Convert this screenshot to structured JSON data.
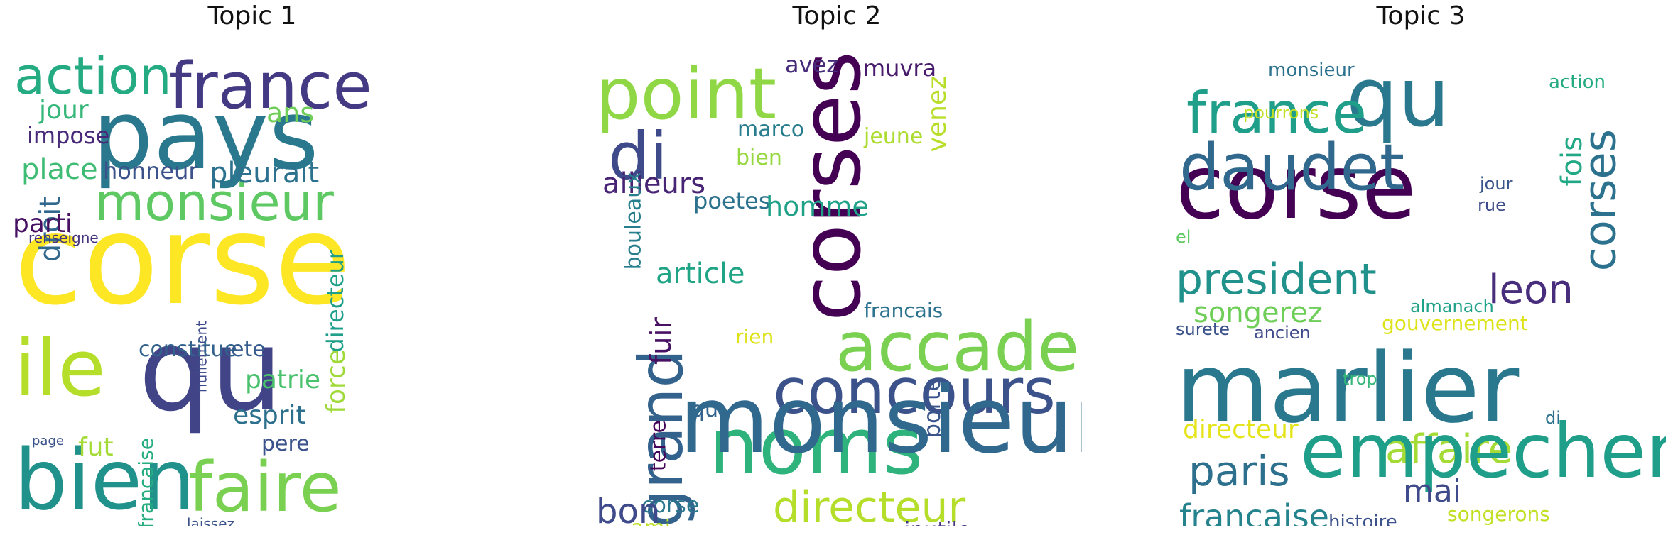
{
  "panels": [
    {
      "title": "Topic 1",
      "words": [
        {
          "text": "corse",
          "color": "#fde725"
        },
        {
          "text": "pays",
          "color": "#2a788e"
        },
        {
          "text": "qu",
          "color": "#414487"
        },
        {
          "text": "bien",
          "color": "#21918c"
        },
        {
          "text": "ile",
          "color": "#b5de2b"
        },
        {
          "text": "france",
          "color": "#443983"
        },
        {
          "text": "action",
          "color": "#25ab82"
        },
        {
          "text": "monsieur",
          "color": "#5ec962"
        },
        {
          "text": "faire",
          "color": "#7ad151"
        },
        {
          "text": "jour",
          "color": "#35b779"
        },
        {
          "text": "impose",
          "color": "#482878"
        },
        {
          "text": "ans",
          "color": "#6ece58"
        },
        {
          "text": "place",
          "color": "#3fbc73"
        },
        {
          "text": "honneur",
          "color": "#3b528b"
        },
        {
          "text": "pleurait",
          "color": "#2c728e"
        },
        {
          "text": "droit",
          "color": "#31688e"
        },
        {
          "text": "parti",
          "color": "#471063"
        },
        {
          "text": "renseigne",
          "color": "#46337e"
        },
        {
          "text": "directeur",
          "color": "#1f9e89"
        },
        {
          "text": "force",
          "color": "#a0da39"
        },
        {
          "text": "nullement",
          "color": "#3e4a89"
        },
        {
          "text": "francaise",
          "color": "#27ad81"
        },
        {
          "text": "constitue",
          "color": "#33638d"
        },
        {
          "text": "ete",
          "color": "#365c8d"
        },
        {
          "text": "patrie",
          "color": "#4ac16d"
        },
        {
          "text": "esprit",
          "color": "#2d708e"
        },
        {
          "text": "page",
          "color": "#3b528b"
        },
        {
          "text": "fut",
          "color": "#a5db36"
        },
        {
          "text": "pere",
          "color": "#3b528b"
        },
        {
          "text": "laissez",
          "color": "#3b528b"
        }
      ]
    },
    {
      "title": "Topic 2",
      "words": [
        {
          "text": "point",
          "color": "#8fd744"
        },
        {
          "text": "corses",
          "color": "#440154"
        },
        {
          "text": "di",
          "color": "#3e4a89"
        },
        {
          "text": "avez",
          "color": "#472c7a"
        },
        {
          "text": "muvra",
          "color": "#481b6d"
        },
        {
          "text": "marco",
          "color": "#287d8e"
        },
        {
          "text": "jeune",
          "color": "#addc30"
        },
        {
          "text": "bien",
          "color": "#95d840"
        },
        {
          "text": "venez",
          "color": "#b8de29"
        },
        {
          "text": "ailleurs",
          "color": "#482475"
        },
        {
          "text": "poetes",
          "color": "#2c728e"
        },
        {
          "text": "homme",
          "color": "#1fa187"
        },
        {
          "text": "bouleaux",
          "color": "#277f8e"
        },
        {
          "text": "article",
          "color": "#20a486"
        },
        {
          "text": "francais",
          "color": "#2c728e"
        },
        {
          "text": "accademia",
          "color": "#7ad151"
        },
        {
          "text": "rien",
          "color": "#dde318"
        },
        {
          "text": "grand",
          "color": "#33638d"
        },
        {
          "text": "fuir",
          "color": "#471063"
        },
        {
          "text": "concours",
          "color": "#3b528b"
        },
        {
          "text": "qu",
          "color": "#33638d"
        },
        {
          "text": "terre",
          "color": "#450559"
        },
        {
          "text": "noms",
          "color": "#2eb37c"
        },
        {
          "text": "porte",
          "color": "#39558c"
        },
        {
          "text": "corse",
          "color": "#2a788e"
        },
        {
          "text": "directeur",
          "color": "#b5de2b"
        },
        {
          "text": "ami",
          "color": "#bddf26"
        },
        {
          "text": "inutile",
          "color": "#453781"
        },
        {
          "text": "monsieur",
          "color": "#31688e"
        },
        {
          "text": "bon",
          "color": "#3e4a89"
        }
      ]
    },
    {
      "title": "Topic 3",
      "words": [
        {
          "text": "corse",
          "color": "#440154"
        },
        {
          "text": "marlier",
          "color": "#2a788e"
        },
        {
          "text": "qu",
          "color": "#2a788e"
        },
        {
          "text": "daudet",
          "color": "#31688e"
        },
        {
          "text": "france",
          "color": "#1f9e89"
        },
        {
          "text": "monsieur",
          "color": "#2c728e"
        },
        {
          "text": "action",
          "color": "#25ab82"
        },
        {
          "text": "pourrons",
          "color": "#c2df23"
        },
        {
          "text": "corses",
          "color": "#2c728e"
        },
        {
          "text": "fois",
          "color": "#22a884"
        },
        {
          "text": "jour",
          "color": "#39568c"
        },
        {
          "text": "rue",
          "color": "#3e4a89"
        },
        {
          "text": "el",
          "color": "#5ec962"
        },
        {
          "text": "president",
          "color": "#21918c"
        },
        {
          "text": "leon",
          "color": "#472d7b"
        },
        {
          "text": "songerez",
          "color": "#6ece58"
        },
        {
          "text": "almanach",
          "color": "#1fa187"
        },
        {
          "text": "surete",
          "color": "#3b528b"
        },
        {
          "text": "ancien",
          "color": "#3e4a89"
        },
        {
          "text": "gouvernement",
          "color": "#dde318"
        },
        {
          "text": "trop",
          "color": "#35b779"
        },
        {
          "text": "di",
          "color": "#2c728e"
        },
        {
          "text": "directeur",
          "color": "#e5e419"
        },
        {
          "text": "affaire",
          "color": "#a5db36"
        },
        {
          "text": "paris",
          "color": "#2d708e"
        },
        {
          "text": "empecher",
          "color": "#1f9e89"
        },
        {
          "text": "mai",
          "color": "#3e4a89"
        },
        {
          "text": "francaise",
          "color": "#25838e"
        },
        {
          "text": "histoire",
          "color": "#3b528b"
        },
        {
          "text": "songerons",
          "color": "#c2df23"
        }
      ]
    }
  ]
}
